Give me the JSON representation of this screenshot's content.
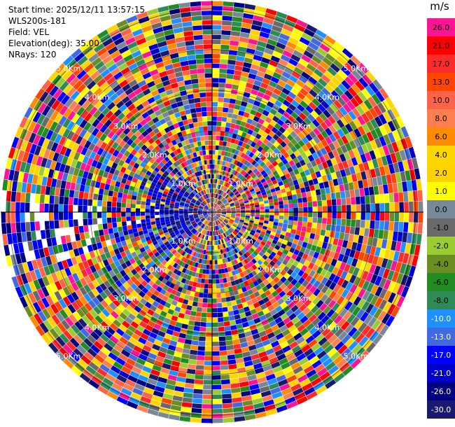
{
  "info": {
    "start_time": "Start time: 2025/12/11 13:57:15",
    "instrument": "WLS200s-181",
    "field": "Field: VEL",
    "elevation": "Elevation(deg): 35.00",
    "nrays": "NRays: 120"
  },
  "colorbar": {
    "unit": "m/s",
    "entries": [
      {
        "label": "26.0",
        "color": "#ff1493"
      },
      {
        "label": "21.0",
        "color": "#ff0000"
      },
      {
        "label": "17.0",
        "color": "#ff2a2a"
      },
      {
        "label": "13.0",
        "color": "#ff4500"
      },
      {
        "label": "10.0",
        "color": "#ff6347"
      },
      {
        "label": "8.0",
        "color": "#ff7f50"
      },
      {
        "label": "6.0",
        "color": "#ff8c00"
      },
      {
        "label": "4.0",
        "color": "#ffd700"
      },
      {
        "label": "2.0",
        "color": "#ffd200"
      },
      {
        "label": "1.0",
        "color": "#ffff00"
      },
      {
        "label": "0.0",
        "color": "#778899"
      },
      {
        "label": "-1.0",
        "color": "#696969"
      },
      {
        "label": "-2.0",
        "color": "#9acd32"
      },
      {
        "label": "-4.0",
        "color": "#6b8e23"
      },
      {
        "label": "-6.0",
        "color": "#228b22"
      },
      {
        "label": "-8.0",
        "color": "#2e8b57"
      },
      {
        "label": "-10.0",
        "color": "#1e90ff"
      },
      {
        "label": "-13.0",
        "color": "#4169e1"
      },
      {
        "label": "-17.0",
        "color": "#0000ff"
      },
      {
        "label": "-21.0",
        "color": "#0000cd"
      },
      {
        "label": "-26.0",
        "color": "#000080"
      },
      {
        "label": "-30.0",
        "color": "#191970"
      }
    ]
  },
  "chart_data": {
    "type": "heatmap",
    "projection": "polar-ppi",
    "field": "VEL",
    "unit": "m/s",
    "nrays": 120,
    "range_rings_km": [
      1,
      2,
      3,
      4,
      5
    ],
    "range_ring_labels": [
      "1.0Km",
      "2.0Km",
      "3.0Km",
      "4.0Km",
      "5.0Km"
    ],
    "color_levels": [
      -30,
      -26,
      -21,
      -17,
      -13,
      -10,
      -8,
      -6,
      -4,
      -2,
      -1,
      0,
      1,
      2,
      4,
      6,
      8,
      10,
      13,
      17,
      21,
      26
    ]
  }
}
